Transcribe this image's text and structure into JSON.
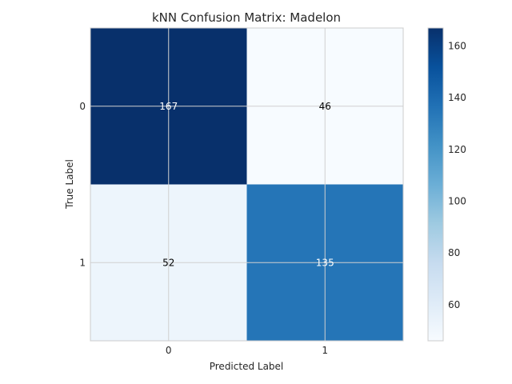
{
  "chart_data": {
    "type": "heatmap",
    "title": "kNN Confusion Matrix: Madelon",
    "xlabel": "Predicted Label",
    "ylabel": "True Label",
    "x_categories": [
      "0",
      "1"
    ],
    "y_categories": [
      "0",
      "1"
    ],
    "matrix": [
      [
        167,
        46
      ],
      [
        52,
        135
      ]
    ],
    "colormap": "Blues",
    "color_range": [
      46,
      167
    ],
    "colorbar_ticks": [
      "60",
      "80",
      "100",
      "120",
      "140",
      "160"
    ],
    "colorbar_tick_values": [
      60,
      80,
      100,
      120,
      140,
      160
    ],
    "grid": true,
    "colors": {
      "low": "#f7fbff",
      "high": "#08306b",
      "text_on_dark": "#ffffff",
      "text_on_light": "#000000",
      "grid": "#d0d0d0"
    }
  }
}
